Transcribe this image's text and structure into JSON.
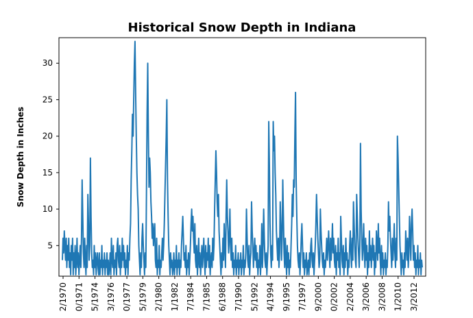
{
  "chart_data": {
    "type": "line",
    "title": "Historical Snow Depth in Indiana",
    "xlabel": "",
    "ylabel": "Snow Depth in Inches",
    "ylim": [
      0.8,
      33.5
    ],
    "grid": false,
    "legend": "none",
    "line_color": "#1f77b4",
    "x_tick_labels": [
      "2/1970",
      "0/1971",
      "5/1974",
      "3/1976",
      "0/1977",
      "5/1979",
      "2/1980",
      "1/1982",
      "7/1984",
      "7/1985",
      "6/1988",
      "7/1990",
      "5/1992",
      "4/1994",
      "9/1995",
      "7/1997",
      "9/2000",
      "0/2002",
      "2/2004",
      "3/2006",
      "3/2008",
      "1/2010",
      "3/2012"
    ],
    "y_ticks": [
      5,
      10,
      15,
      20,
      25,
      30
    ],
    "series": [
      {
        "values": [
          3,
          6,
          4,
          7,
          5,
          3,
          6,
          2,
          5,
          3,
          6,
          2,
          4,
          1,
          5,
          3,
          6,
          1,
          4,
          2,
          5,
          1,
          3,
          6,
          2,
          4,
          1,
          3,
          5,
          2,
          6,
          14,
          9,
          4,
          2,
          6,
          3,
          1,
          5,
          2,
          12,
          8,
          3,
          5,
          17,
          9,
          4,
          2,
          3,
          1,
          5,
          2,
          4,
          1,
          3,
          4,
          2,
          1,
          4,
          1,
          3,
          2,
          5,
          1,
          3,
          2,
          4,
          1,
          3,
          2,
          4,
          1,
          3,
          1,
          2,
          4,
          1,
          6,
          3,
          2,
          5,
          1,
          3,
          2,
          4,
          1,
          5,
          6,
          3,
          2,
          5,
          1,
          4,
          2,
          6,
          3,
          5,
          2,
          4,
          1,
          3,
          2,
          5,
          1,
          4,
          3,
          6,
          8,
          14,
          18,
          23,
          20,
          25,
          30,
          33,
          26,
          20,
          15,
          12,
          10,
          5,
          3,
          1,
          4,
          2,
          6,
          8,
          5,
          3,
          1,
          4,
          2,
          12,
          23,
          30,
          20,
          13,
          17,
          15,
          11,
          9,
          6,
          8,
          5,
          7,
          8,
          3,
          2,
          6,
          1,
          3,
          2,
          5,
          1,
          3,
          2,
          4,
          6,
          3,
          5,
          8,
          12,
          16,
          20,
          25,
          14,
          9,
          5,
          3,
          1,
          4,
          2,
          3,
          1,
          2,
          4,
          1,
          3,
          2,
          5,
          1,
          3,
          2,
          4,
          1,
          3,
          2,
          5,
          7,
          9,
          6,
          3,
          4,
          2,
          5,
          1,
          3,
          2,
          4,
          1,
          3,
          5,
          8,
          10,
          7,
          9,
          6,
          4,
          8,
          3,
          2,
          5,
          1,
          3,
          6,
          2,
          4,
          1,
          3,
          5,
          2,
          4,
          6,
          3,
          1,
          5,
          2,
          4,
          3,
          6,
          2,
          5,
          1,
          3,
          4,
          2,
          6,
          3,
          5,
          10,
          14,
          18,
          15,
          11,
          9,
          12,
          7,
          5,
          3,
          1,
          4,
          2,
          6,
          3,
          8,
          5,
          2,
          9,
          14,
          9,
          7,
          4,
          6,
          10,
          5,
          3,
          6,
          2,
          4,
          1,
          3,
          2,
          5,
          1,
          3,
          2,
          4,
          1,
          3,
          2,
          4,
          1,
          3,
          2,
          5,
          1,
          3,
          2,
          4,
          10,
          6,
          3,
          2,
          5,
          1,
          3,
          4,
          11,
          7,
          5,
          2,
          4,
          6,
          3,
          5,
          2,
          4,
          1,
          3,
          2,
          5,
          1,
          3,
          8,
          2,
          5,
          10,
          6,
          3,
          2,
          4,
          1,
          3,
          5,
          22,
          16,
          8,
          4,
          2,
          5,
          3,
          22,
          18,
          20,
          15,
          12,
          7,
          5,
          3,
          6,
          2,
          4,
          11,
          8,
          3,
          6,
          14,
          9,
          4,
          2,
          6,
          3,
          1,
          5,
          2,
          4,
          1,
          3,
          2,
          5,
          8,
          12,
          9,
          14,
          13,
          20,
          26,
          14,
          9,
          5,
          3,
          2,
          4,
          1,
          3,
          6,
          8,
          5,
          2,
          4,
          1,
          3,
          2,
          4,
          1,
          2,
          3,
          1,
          4,
          2,
          5,
          6,
          3,
          2,
          4,
          1,
          3,
          5,
          8,
          12,
          9,
          6,
          4,
          2,
          3,
          10,
          7,
          5,
          3,
          2,
          4,
          1,
          3,
          2,
          4,
          6,
          3,
          5,
          7,
          4,
          2,
          6,
          3,
          5,
          8,
          4,
          6,
          3,
          2,
          5,
          1,
          4,
          3,
          6,
          2,
          4,
          1,
          9,
          6,
          3,
          2,
          5,
          1,
          4,
          2,
          6,
          3,
          4,
          1,
          3,
          2,
          5,
          7,
          4,
          2,
          6,
          3,
          11,
          8,
          5,
          3,
          2,
          12,
          9,
          6,
          4,
          2,
          5,
          19,
          10,
          6,
          3,
          5,
          8,
          4,
          2,
          6,
          3,
          5,
          1,
          4,
          2,
          7,
          3,
          5,
          2,
          4,
          6,
          3,
          5,
          1,
          4,
          2,
          7,
          5,
          3,
          8,
          4,
          6,
          3,
          1,
          5,
          2,
          4,
          1,
          3,
          2,
          4,
          1,
          3,
          2,
          5,
          11,
          7,
          9,
          6,
          4,
          2,
          6,
          3,
          5,
          8,
          4,
          2,
          6,
          3,
          20,
          17,
          13,
          9,
          5,
          3,
          1,
          4,
          2,
          3,
          1,
          4,
          2,
          7,
          5,
          3,
          6,
          2,
          4,
          9,
          6,
          3,
          8,
          10,
          7,
          3,
          5,
          2,
          4,
          1,
          3,
          2,
          5,
          1,
          3,
          2,
          4,
          1,
          3,
          2
        ]
      }
    ]
  }
}
